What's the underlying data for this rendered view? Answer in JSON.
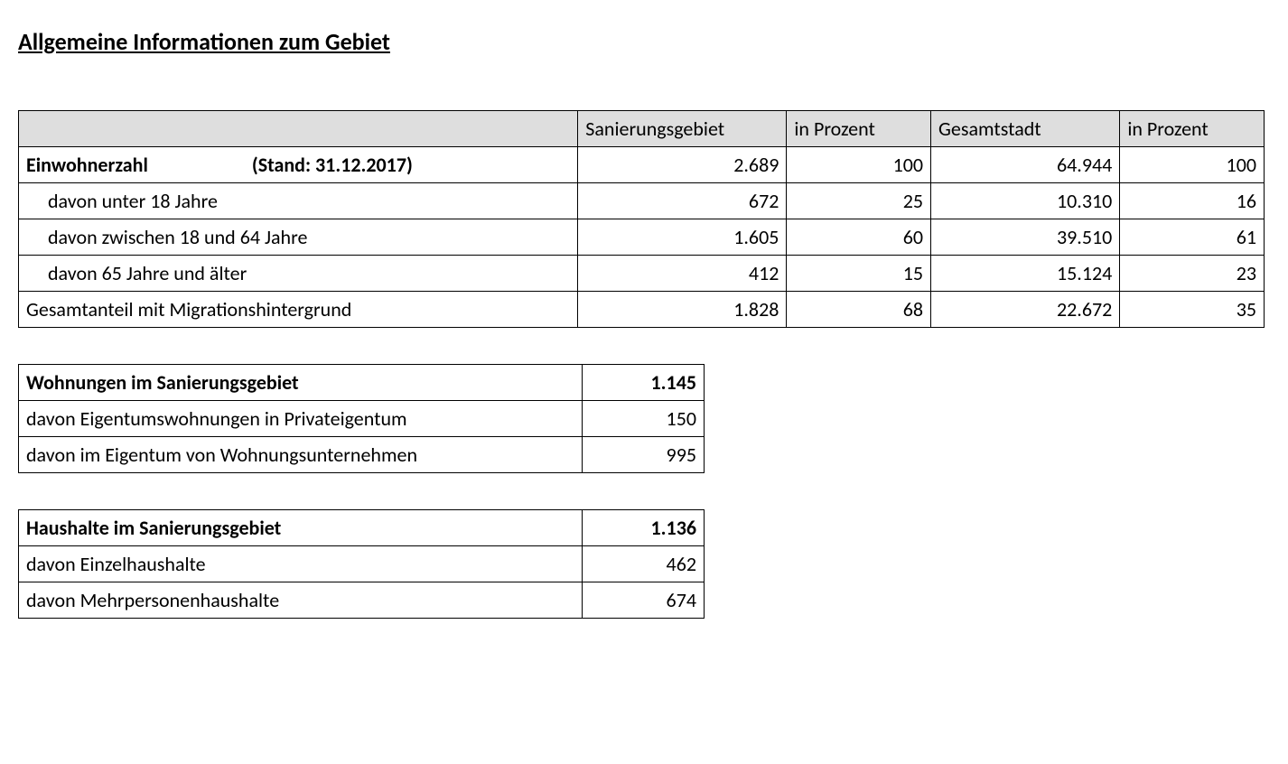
{
  "title": "Allgemeine Informationen zum Gebiet",
  "colors": {
    "header_bg": "#dedede",
    "border": "#000000",
    "text": "#000000",
    "background": "#ffffff"
  },
  "typography": {
    "font_family": "Calibri",
    "title_fontsize_pt": 20,
    "body_fontsize_pt": 17,
    "title_weight": "bold",
    "title_underline": true
  },
  "table1": {
    "type": "table",
    "headers": [
      "",
      "Sanierungsgebiet",
      "in Prozent",
      "Gesamtstadt",
      "in Prozent"
    ],
    "column_align": [
      "left",
      "right",
      "right",
      "right",
      "right"
    ],
    "rows": [
      {
        "label_a": "Einwohnerzahl",
        "label_b": "(Stand: 31.12.2017)",
        "bold": true,
        "indent": false,
        "sanierung": "2.689",
        "pct1": "100",
        "gesamt": "64.944",
        "pct2": "100"
      },
      {
        "label_a": "davon unter 18 Jahre",
        "label_b": "",
        "bold": false,
        "indent": true,
        "sanierung": "672",
        "pct1": "25",
        "gesamt": "10.310",
        "pct2": "16"
      },
      {
        "label_a": "davon zwischen 18 und 64 Jahre",
        "label_b": "",
        "bold": false,
        "indent": true,
        "sanierung": "1.605",
        "pct1": "60",
        "gesamt": "39.510",
        "pct2": "61"
      },
      {
        "label_a": "davon 65 Jahre und älter",
        "label_b": "",
        "bold": false,
        "indent": true,
        "sanierung": "412",
        "pct1": "15",
        "gesamt": "15.124",
        "pct2": "23"
      },
      {
        "label_a": "Gesamtanteil mit Migrationshintergrund",
        "label_b": "",
        "bold": false,
        "indent": false,
        "sanierung": "1.828",
        "pct1": "68",
        "gesamt": "22.672",
        "pct2": "35"
      }
    ]
  },
  "table2": {
    "type": "table",
    "column_align": [
      "left",
      "right"
    ],
    "rows": [
      {
        "label": "Wohnungen im Sanierungsgebiet",
        "bold": true,
        "value": "1.145"
      },
      {
        "label": "davon Eigentumswohnungen in Privateigentum",
        "bold": false,
        "value": "150"
      },
      {
        "label": "davon im Eigentum von Wohnungsunternehmen",
        "bold": false,
        "value": "995"
      }
    ]
  },
  "table3": {
    "type": "table",
    "column_align": [
      "left",
      "right"
    ],
    "rows": [
      {
        "label": "Haushalte im Sanierungsgebiet",
        "bold": true,
        "value": "1.136"
      },
      {
        "label": "davon Einzelhaushalte",
        "bold": false,
        "value": "462"
      },
      {
        "label": "davon Mehrpersonenhaushalte",
        "bold": false,
        "value": "674"
      }
    ]
  }
}
